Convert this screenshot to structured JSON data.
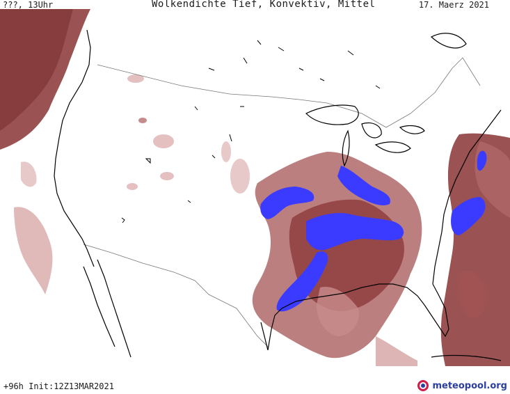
{
  "header": {
    "left": "???, 13Uhr",
    "title": "Wolkendichte   Tief, Konvektiv, Mittel",
    "date": "17. Maerz 2021"
  },
  "footer": {
    "run_info": "+96h  Init:12Z13MAR2021",
    "brand": "meteopool.org"
  },
  "colors": {
    "light_cloud": "#f1dada",
    "mid_cloud": "#c88c8c",
    "dense_cloud": "#8a3434",
    "convective": "#3b3bff",
    "coast": "#000000",
    "border": "#777777"
  }
}
